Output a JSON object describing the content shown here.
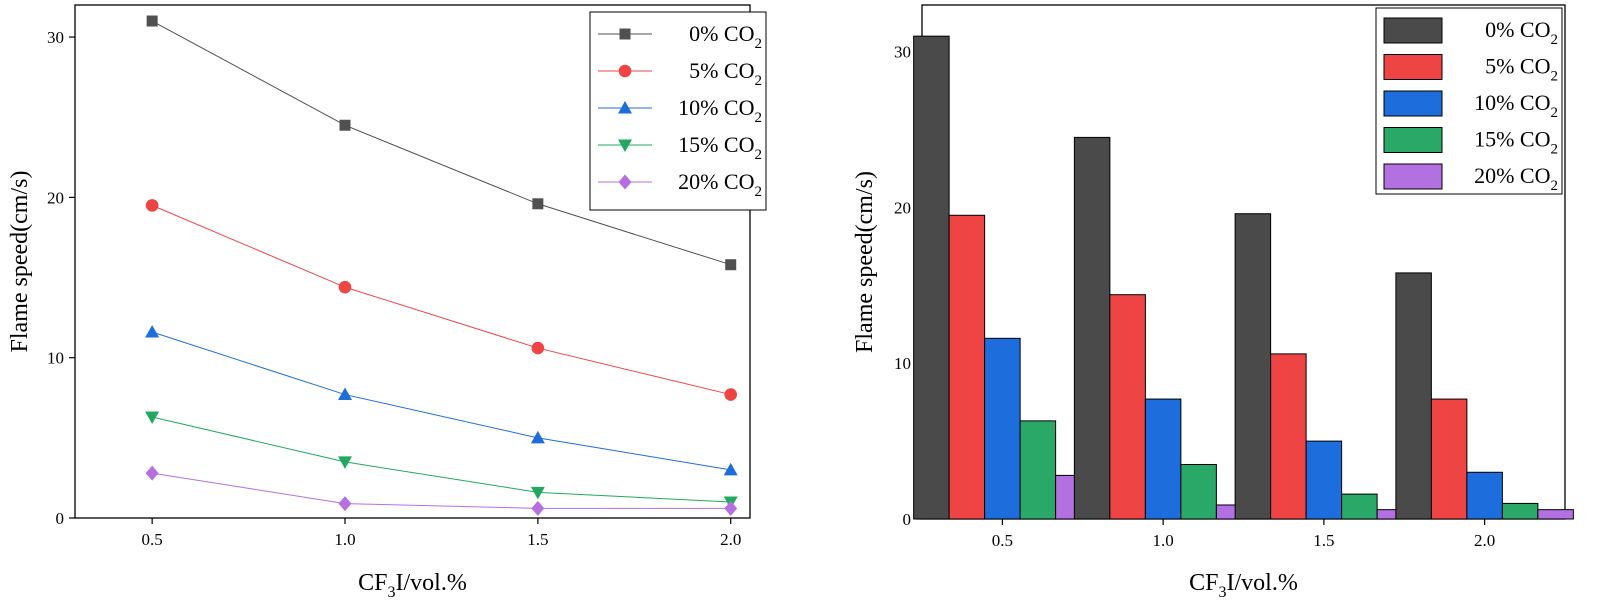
{
  "chart_data": [
    {
      "type": "line",
      "title": "",
      "xlabel": {
        "base": "CF",
        "sub": "3",
        "rest": "I/vol.%"
      },
      "ylabel": "Flame speed(cm/s)",
      "x": [
        0.5,
        1.0,
        1.5,
        2.0
      ],
      "xticks": [
        "0.5",
        "1.0",
        "1.5",
        "2.0"
      ],
      "yticks": [
        "0",
        "10",
        "20",
        "30"
      ],
      "ylim": [
        0,
        32
      ],
      "xlim": [
        0.3,
        2.05
      ],
      "legend_position": "top-right",
      "series": [
        {
          "name": "0% CO",
          "sub": "2",
          "color": "#505050",
          "marker": "square",
          "values": [
            31.0,
            24.5,
            19.6,
            15.8
          ]
        },
        {
          "name": "5% CO",
          "sub": "2",
          "color": "#ef4444",
          "marker": "circle",
          "values": [
            19.5,
            14.4,
            10.6,
            7.7
          ]
        },
        {
          "name": "10% CO",
          "sub": "2",
          "color": "#1e6ddc",
          "marker": "triangle-up",
          "values": [
            11.6,
            7.7,
            5.0,
            3.0
          ]
        },
        {
          "name": "15% CO",
          "sub": "2",
          "color": "#22a860",
          "marker": "triangle-down",
          "values": [
            6.3,
            3.5,
            1.6,
            1.0
          ]
        },
        {
          "name": "20% CO",
          "sub": "2",
          "color": "#b56fe0",
          "marker": "diamond",
          "values": [
            2.8,
            0.9,
            0.6,
            0.6
          ]
        }
      ]
    },
    {
      "type": "bar",
      "title": "",
      "xlabel": {
        "base": "CF",
        "sub": "3",
        "rest": "I/vol.%"
      },
      "ylabel": "Flame speed(cm/s)",
      "categories": [
        "0.5",
        "1.0",
        "1.5",
        "2.0"
      ],
      "yticks": [
        "0",
        "10",
        "20",
        "30"
      ],
      "ylim": [
        0,
        33
      ],
      "legend_position": "top-right",
      "series": [
        {
          "name": "0% CO",
          "sub": "2",
          "color": "#4a4a4a",
          "values": [
            31.0,
            24.5,
            19.6,
            15.8
          ]
        },
        {
          "name": "5% CO",
          "sub": "2",
          "color": "#ef4444",
          "values": [
            19.5,
            14.4,
            10.6,
            7.7
          ]
        },
        {
          "name": "10% CO",
          "sub": "2",
          "color": "#1e6ddc",
          "values": [
            11.6,
            7.7,
            5.0,
            3.0
          ]
        },
        {
          "name": "15% CO",
          "sub": "2",
          "color": "#2aa867",
          "values": [
            6.3,
            3.5,
            1.6,
            1.0
          ]
        },
        {
          "name": "20% CO",
          "sub": "2",
          "color": "#b370e0",
          "values": [
            2.8,
            0.9,
            0.6,
            0.6
          ]
        }
      ]
    }
  ]
}
